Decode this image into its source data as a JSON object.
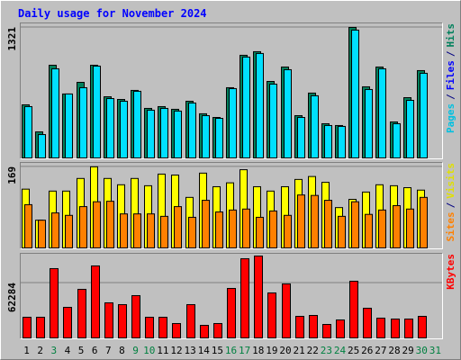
{
  "title": "Daily usage for November 2024",
  "legend_separator": "/",
  "chart_data": [
    {
      "type": "bar",
      "ylim": [
        0,
        1366
      ],
      "yticks": [
        1321
      ],
      "grid": true,
      "legend": [
        {
          "name": "Pages",
          "color": "#00C0E0"
        },
        {
          "name": "Files",
          "color": "#0000FF"
        },
        {
          "name": "Hits",
          "color": "#00805C"
        }
      ],
      "series": [
        {
          "color": "#00805C",
          "values": [
            543,
            271,
            941,
            652,
            769,
            941,
            624,
            597,
            688,
            507,
            525,
            498,
            579,
            453,
            416,
            715,
            1041,
            1077,
            778,
            923,
            434,
            661,
            353,
            335,
            1321,
            724,
            923,
            371,
            615,
            887,
            0
          ]
        },
        {
          "color": "#00E0FF",
          "values": [
            525,
            244,
            905,
            652,
            715,
            932,
            606,
            579,
            679,
            489,
            507,
            480,
            561,
            434,
            407,
            706,
            1023,
            1059,
            751,
            896,
            416,
            634,
            335,
            326,
            1294,
            697,
            905,
            353,
            588,
            860,
            0
          ]
        }
      ]
    },
    {
      "type": "bar",
      "ylim": [
        0,
        178
      ],
      "yticks": [
        169
      ],
      "grid": true,
      "legend": [
        {
          "name": "Sites",
          "color": "#FF8000"
        },
        {
          "name": "Visits",
          "color": "#E0E000"
        }
      ],
      "series": [
        {
          "color": "#FFFF00",
          "values": [
            123,
            59,
            119,
            119,
            145,
            169,
            145,
            132,
            145,
            130,
            154,
            152,
            106,
            156,
            128,
            136,
            163,
            128,
            119,
            128,
            143,
            149,
            137,
            85,
            102,
            117,
            132,
            130,
            126,
            121,
            0
          ]
        },
        {
          "color": "#FF8000",
          "values": [
            91,
            59,
            74,
            69,
            87,
            97,
            98,
            72,
            72,
            72,
            67,
            87,
            65,
            100,
            76,
            80,
            82,
            65,
            78,
            69,
            111,
            110,
            100,
            67,
            97,
            71,
            80,
            89,
            82,
            106,
            0
          ]
        }
      ]
    },
    {
      "type": "bar",
      "ylim": [
        0,
        95440
      ],
      "yticks": [
        62284
      ],
      "grid": true,
      "legend": [
        {
          "name": "KBytes",
          "color": "#FF0000"
        }
      ],
      "series": [
        {
          "color": "#FF0000",
          "values": [
            24120,
            24120,
            78390,
            35175,
            55275,
            81405,
            40200,
            38190,
            48240,
            24120,
            24120,
            17085,
            38190,
            15075,
            17085,
            56280,
            89445,
            92460,
            51255,
            61305,
            25125,
            26130,
            16080,
            21105,
            64320,
            34170,
            23115,
            22110,
            22110,
            25125,
            0
          ]
        }
      ],
      "categories": [
        "1",
        "2",
        "3",
        "4",
        "5",
        "6",
        "7",
        "8",
        "9",
        "10",
        "11",
        "12",
        "13",
        "14",
        "15",
        "16",
        "17",
        "18",
        "19",
        "20",
        "21",
        "22",
        "23",
        "24",
        "25",
        "26",
        "27",
        "28",
        "29",
        "30",
        "31"
      ],
      "category_colors": [
        "#000000",
        "#000000",
        "#008040",
        "#000000",
        "#000000",
        "#000000",
        "#000000",
        "#000000",
        "#008040",
        "#008040",
        "#000000",
        "#000000",
        "#000000",
        "#000000",
        "#000000",
        "#008040",
        "#008040",
        "#000000",
        "#000000",
        "#000000",
        "#000000",
        "#000000",
        "#008040",
        "#008040",
        "#000000",
        "#000000",
        "#000000",
        "#000000",
        "#000000",
        "#008040",
        "#008040"
      ]
    }
  ]
}
